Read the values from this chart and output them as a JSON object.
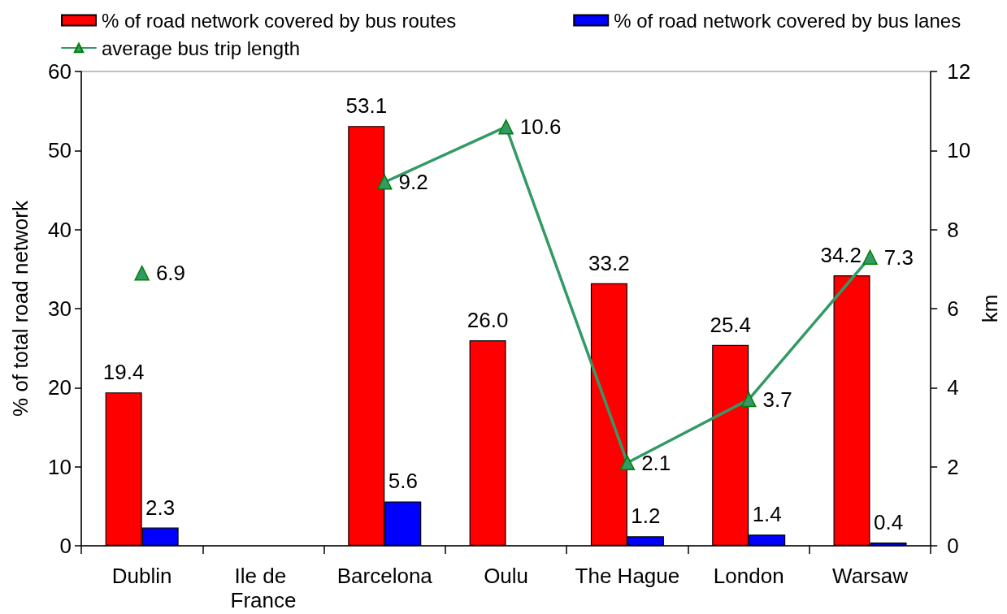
{
  "chart_data": {
    "type": "bar",
    "categories": [
      "Dublin",
      "Ile de France",
      "Barcelona",
      "Oulu",
      "The Hague",
      "London",
      "Warsaw"
    ],
    "series": [
      {
        "name": "% of road network covered by bus routes",
        "color": "#ff0000",
        "values": [
          19.4,
          null,
          53.1,
          26.0,
          33.2,
          25.4,
          34.2
        ],
        "value_labels": [
          "19.4",
          null,
          "53.1",
          "26.0",
          "33.2",
          "25.4",
          "34.2"
        ]
      },
      {
        "name": "% of road network covered by bus lanes",
        "color": "#0000ff",
        "values": [
          2.3,
          null,
          5.6,
          null,
          1.2,
          1.4,
          0.4
        ],
        "value_labels": [
          "2.3",
          null,
          "5.6",
          null,
          "1.2",
          "1.4",
          "0.4"
        ]
      },
      {
        "name": "average bus trip length",
        "type": "line",
        "axis": "y2",
        "color": "#339966",
        "marker": "triangle",
        "line_style": "solid",
        "values": [
          6.9,
          null,
          9.2,
          10.6,
          2.1,
          3.7,
          7.3
        ],
        "value_labels": [
          "6.9",
          null,
          "9.2",
          "10.6",
          "2.1",
          "3.7",
          "7.3"
        ]
      }
    ],
    "ylabel": "% of total road network",
    "y2label": "km",
    "ylim": [
      0,
      60
    ],
    "yticks": [
      0,
      10,
      20,
      30,
      40,
      50,
      60
    ],
    "y2lim": [
      0,
      12
    ],
    "y2ticks": [
      0,
      2,
      4,
      6,
      8,
      10,
      12
    ],
    "grid": false,
    "legend": "top"
  }
}
